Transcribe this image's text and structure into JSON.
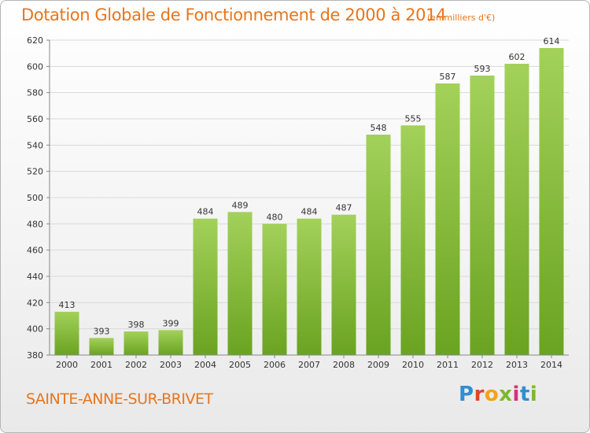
{
  "header": {
    "title": "Dotation Globale de Fonctionnement de 2000 à 2014",
    "subtitle": "(en milliers d'€)"
  },
  "footer": {
    "town": "SAINTE-ANNE-SUR-BRIVET",
    "logo_text": "Proxiti"
  },
  "colors": {
    "title": "#e8751c",
    "bar_light": "#a3d15a",
    "bar_dark": "#6aa321",
    "grid": "#d9d9d9"
  },
  "chart_data": {
    "type": "bar",
    "title": "Dotation Globale de Fonctionnement de 2000 à 2014",
    "subtitle": "(en milliers d'€)",
    "categories": [
      "2000",
      "2001",
      "2002",
      "2003",
      "2004",
      "2005",
      "2006",
      "2007",
      "2008",
      "2009",
      "2010",
      "2011",
      "2012",
      "2013",
      "2014"
    ],
    "values": [
      413,
      393,
      398,
      399,
      484,
      489,
      480,
      484,
      487,
      548,
      555,
      587,
      593,
      602,
      614
    ],
    "ylim": [
      380,
      620
    ],
    "yticks": [
      380,
      400,
      420,
      440,
      460,
      480,
      500,
      520,
      540,
      560,
      580,
      600,
      620
    ],
    "grid": true,
    "legend": "none"
  }
}
